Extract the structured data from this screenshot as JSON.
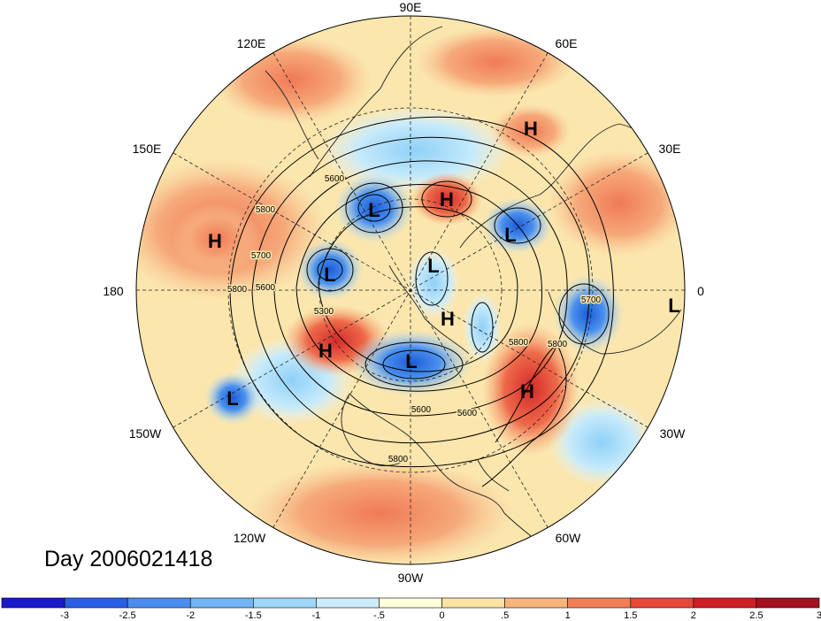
{
  "title": "Day 2006021418",
  "longitude_labels": {
    "lon_90E": "90E",
    "lon_60E": "60E",
    "lon_120E": "120E",
    "lon_30E": "30E",
    "lon_150E": "150E",
    "lon_180": "180",
    "lon_0": "0",
    "lon_150W": "150W",
    "lon_30W": "30W",
    "lon_120W": "120W",
    "lon_60W": "60W",
    "lon_90W": "90W"
  },
  "pressure_centers": [
    {
      "type": "H"
    },
    {
      "type": "L"
    },
    {
      "type": "H"
    },
    {
      "type": "L"
    },
    {
      "type": "H"
    },
    {
      "type": "L"
    },
    {
      "type": "L"
    },
    {
      "type": "H"
    },
    {
      "type": "L"
    },
    {
      "type": "H"
    },
    {
      "type": "L"
    },
    {
      "type": "H"
    },
    {
      "type": "L"
    }
  ],
  "contour_labels": [
    "5600",
    "5800",
    "5700",
    "5600",
    "5800",
    "5300",
    "5700",
    "5800",
    "5800",
    "5600",
    "5600",
    "5800"
  ],
  "colorbar": {
    "colors": [
      "#1a1acc",
      "#2a5ee6",
      "#4a8cf0",
      "#72b4f5",
      "#9ed6fa",
      "#ccecfc",
      "#ffffd9",
      "#fbe3a4",
      "#f8b37b",
      "#f27e55",
      "#e8483a",
      "#cc1f26",
      "#a50f1e"
    ],
    "tick_labels": [
      "-3",
      "-2.5",
      "-2",
      "-1.5",
      "-1",
      "-.5",
      "0",
      ".5",
      "1",
      "1.5",
      "2",
      "2.5",
      "3"
    ]
  }
}
